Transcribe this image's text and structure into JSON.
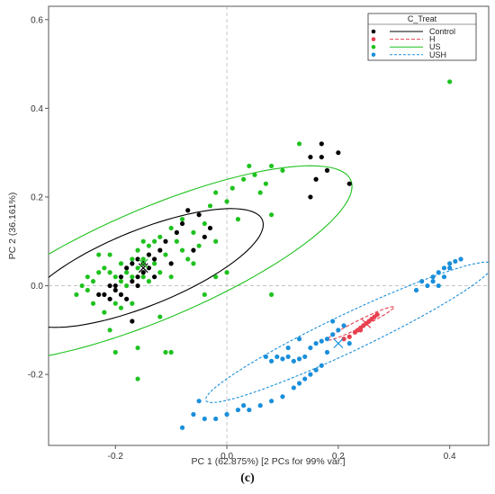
{
  "caption": "(c)",
  "chart_data": {
    "type": "scatter",
    "xlabel": "PC 1 (62.875%)   [2 PCs for 99% var.]",
    "ylabel": "PC 2 (36.161%)",
    "xlim": [
      -0.32,
      0.47
    ],
    "ylim": [
      -0.36,
      0.63
    ],
    "xticks": [
      -0.2,
      0.0,
      0.2,
      0.4
    ],
    "xtick_labels": [
      "-0.2",
      "0.0",
      "0.2",
      "0.4"
    ],
    "yticks": [
      -0.2,
      0.0,
      0.2,
      0.4,
      0.6
    ],
    "ytick_labels": [
      "-0.2",
      "0.0",
      "0.2",
      "0.4",
      "0.6"
    ],
    "zero_lines": true,
    "legend": {
      "title": "C_Treat",
      "position": "top-right",
      "entries": [
        "Control",
        "H",
        "US",
        "USH"
      ]
    },
    "colors": {
      "Control": "#000000",
      "H": "#e8404f",
      "US": "#1fc21f",
      "USH": "#1a8fdb"
    },
    "series": [
      {
        "name": "Control",
        "centroid": [
          -0.15,
          0.04
        ],
        "ellipse": {
          "center": [
            -0.15,
            0.04
          ],
          "semi_major": 0.24,
          "semi_minor": 0.082,
          "angle_deg": 28
        },
        "points": [
          [
            -0.22,
            -0.02
          ],
          [
            -0.21,
            -0.03
          ],
          [
            -0.2,
            -0.01
          ],
          [
            -0.19,
            -0.02
          ],
          [
            -0.2,
            0.0
          ],
          [
            -0.18,
            -0.03
          ],
          [
            -0.17,
            0.01
          ],
          [
            -0.16,
            0.0
          ],
          [
            -0.16,
            0.02
          ],
          [
            -0.15,
            0.03
          ],
          [
            -0.15,
            0.05
          ],
          [
            -0.14,
            0.04
          ],
          [
            -0.13,
            0.06
          ],
          [
            -0.14,
            0.07
          ],
          [
            -0.16,
            0.06
          ],
          [
            -0.17,
            0.05
          ],
          [
            -0.12,
            0.08
          ],
          [
            -0.11,
            0.1
          ],
          [
            -0.09,
            0.12
          ],
          [
            -0.08,
            0.14
          ],
          [
            -0.07,
            0.17
          ],
          [
            -0.05,
            0.16
          ],
          [
            -0.03,
            0.13
          ],
          [
            -0.04,
            0.11
          ],
          [
            -0.1,
            0.05
          ],
          [
            -0.23,
            -0.02
          ],
          [
            -0.19,
            0.02
          ],
          [
            -0.13,
            0.02
          ],
          [
            -0.17,
            -0.08
          ],
          [
            -0.06,
            0.08
          ],
          [
            0.15,
            0.29
          ],
          [
            0.17,
            0.32
          ],
          [
            0.17,
            0.29
          ],
          [
            0.18,
            0.26
          ],
          [
            0.2,
            0.3
          ],
          [
            0.22,
            0.23
          ],
          [
            0.16,
            0.24
          ],
          [
            0.15,
            0.2
          ],
          [
            -0.18,
            0.04
          ],
          [
            -0.21,
            0.0
          ]
        ]
      },
      {
        "name": "H",
        "centroid": [
          0.25,
          -0.085
        ],
        "ellipse": {
          "center": [
            0.24,
            -0.085
          ],
          "semi_major": 0.07,
          "semi_minor": 0.008,
          "angle_deg": 32
        },
        "points": [
          [
            0.21,
            -0.12
          ],
          [
            0.22,
            -0.115
          ],
          [
            0.23,
            -0.105
          ],
          [
            0.24,
            -0.095
          ],
          [
            0.245,
            -0.09
          ],
          [
            0.25,
            -0.085
          ],
          [
            0.255,
            -0.08
          ],
          [
            0.26,
            -0.075
          ],
          [
            0.265,
            -0.07
          ],
          [
            0.27,
            -0.065
          ],
          [
            0.24,
            -0.1
          ],
          [
            0.235,
            -0.1
          ]
        ]
      },
      {
        "name": "US",
        "centroid": [
          -0.15,
          0.05
        ],
        "ellipse": {
          "center": [
            -0.13,
            0.05
          ],
          "semi_major": 0.4,
          "semi_minor": 0.12,
          "angle_deg": 29
        },
        "points": [
          [
            -0.27,
            -0.02
          ],
          [
            -0.26,
            0.0
          ],
          [
            -0.25,
            -0.01
          ],
          [
            -0.25,
            0.02
          ],
          [
            -0.24,
            -0.04
          ],
          [
            -0.24,
            0.01
          ],
          [
            -0.23,
            0.03
          ],
          [
            -0.22,
            -0.06
          ],
          [
            -0.22,
            0.04
          ],
          [
            -0.21,
            0.03
          ],
          [
            -0.21,
            -0.1
          ],
          [
            -0.2,
            0.02
          ],
          [
            -0.2,
            -0.04
          ],
          [
            -0.19,
            0.01
          ],
          [
            -0.19,
            0.05
          ],
          [
            -0.18,
            0.03
          ],
          [
            -0.18,
            0.0
          ],
          [
            -0.17,
            0.06
          ],
          [
            -0.17,
            0.02
          ],
          [
            -0.16,
            0.04
          ],
          [
            -0.16,
            0.08
          ],
          [
            -0.15,
            0.06
          ],
          [
            -0.15,
            0.02
          ],
          [
            -0.14,
            0.07
          ],
          [
            -0.14,
            0.09
          ],
          [
            -0.13,
            0.05
          ],
          [
            -0.13,
            0.1
          ],
          [
            -0.12,
            0.11
          ],
          [
            -0.11,
            0.07
          ],
          [
            -0.1,
            0.13
          ],
          [
            -0.1,
            0.02
          ],
          [
            -0.09,
            0.1
          ],
          [
            -0.08,
            0.08
          ],
          [
            -0.08,
            0.15
          ],
          [
            -0.07,
            0.06
          ],
          [
            -0.06,
            0.12
          ],
          [
            -0.05,
            0.09
          ],
          [
            -0.04,
            0.14
          ],
          [
            -0.03,
            0.18
          ],
          [
            -0.02,
            0.21
          ],
          [
            0.0,
            0.19
          ],
          [
            0.01,
            0.22
          ],
          [
            0.02,
            0.15
          ],
          [
            0.03,
            0.24
          ],
          [
            0.04,
            0.27
          ],
          [
            0.05,
            0.25
          ],
          [
            0.06,
            0.21
          ],
          [
            0.07,
            0.23
          ],
          [
            0.0,
            0.03
          ],
          [
            -0.04,
            -0.02
          ],
          [
            -0.16,
            -0.14
          ],
          [
            -0.11,
            -0.15
          ],
          [
            -0.1,
            -0.15
          ],
          [
            -0.16,
            -0.21
          ],
          [
            -0.2,
            -0.15
          ],
          [
            -0.12,
            -0.07
          ],
          [
            0.08,
            -0.02
          ],
          [
            0.13,
            0.32
          ],
          [
            0.1,
            0.26
          ],
          [
            0.4,
            0.46
          ],
          [
            -0.23,
            0.07
          ],
          [
            -0.21,
            0.07
          ],
          [
            -0.19,
            -0.05
          ],
          [
            -0.17,
            -0.04
          ],
          [
            -0.15,
            0.1
          ],
          [
            -0.12,
            0.03
          ],
          [
            -0.14,
            0.01
          ],
          [
            -0.06,
            0.05
          ],
          [
            0.08,
            0.27
          ],
          [
            -0.02,
            0.1
          ],
          [
            0.08,
            0.16
          ],
          [
            -0.02,
            0.02
          ]
        ]
      },
      {
        "name": "USH",
        "centroid": [
          0.2,
          -0.13
        ],
        "ellipse": {
          "center": [
            0.22,
            -0.105
          ],
          "semi_major": 0.3,
          "semi_minor": 0.04,
          "angle_deg": 31
        },
        "points": [
          [
            0.08,
            -0.17
          ],
          [
            0.09,
            -0.16
          ],
          [
            0.1,
            -0.165
          ],
          [
            0.11,
            -0.16
          ],
          [
            0.12,
            -0.17
          ],
          [
            0.13,
            -0.165
          ],
          [
            0.14,
            -0.16
          ],
          [
            0.15,
            -0.14
          ],
          [
            0.16,
            -0.13
          ],
          [
            0.17,
            -0.125
          ],
          [
            0.18,
            -0.12
          ],
          [
            0.19,
            -0.11
          ],
          [
            0.2,
            -0.1
          ],
          [
            0.21,
            -0.09
          ],
          [
            0.18,
            -0.15
          ],
          [
            0.17,
            -0.18
          ],
          [
            0.16,
            -0.19
          ],
          [
            0.15,
            -0.2
          ],
          [
            0.14,
            -0.21
          ],
          [
            0.13,
            -0.22
          ],
          [
            0.12,
            -0.23
          ],
          [
            0.1,
            -0.25
          ],
          [
            0.08,
            -0.26
          ],
          [
            0.06,
            -0.27
          ],
          [
            0.04,
            -0.28
          ],
          [
            0.02,
            -0.28
          ],
          [
            0.0,
            -0.29
          ],
          [
            -0.02,
            -0.3
          ],
          [
            -0.04,
            -0.3
          ],
          [
            -0.06,
            -0.29
          ],
          [
            -0.08,
            -0.32
          ],
          [
            0.13,
            -0.12
          ],
          [
            0.19,
            -0.08
          ],
          [
            0.36,
            0.0
          ],
          [
            0.37,
            0.01
          ],
          [
            0.38,
            0.03
          ],
          [
            0.39,
            0.04
          ],
          [
            0.4,
            0.05
          ],
          [
            0.41,
            0.055
          ],
          [
            0.42,
            0.06
          ],
          [
            0.37,
            0.02
          ],
          [
            0.38,
            0.0
          ],
          [
            0.39,
            0.02
          ],
          [
            0.4,
            0.04
          ],
          [
            0.35,
            0.01
          ],
          [
            0.34,
            -0.01
          ],
          [
            0.22,
            -0.13
          ],
          [
            0.21,
            -0.12
          ],
          [
            -0.05,
            -0.26
          ],
          [
            0.03,
            -0.27
          ],
          [
            0.11,
            -0.14
          ],
          [
            0.07,
            -0.16
          ]
        ]
      }
    ]
  }
}
